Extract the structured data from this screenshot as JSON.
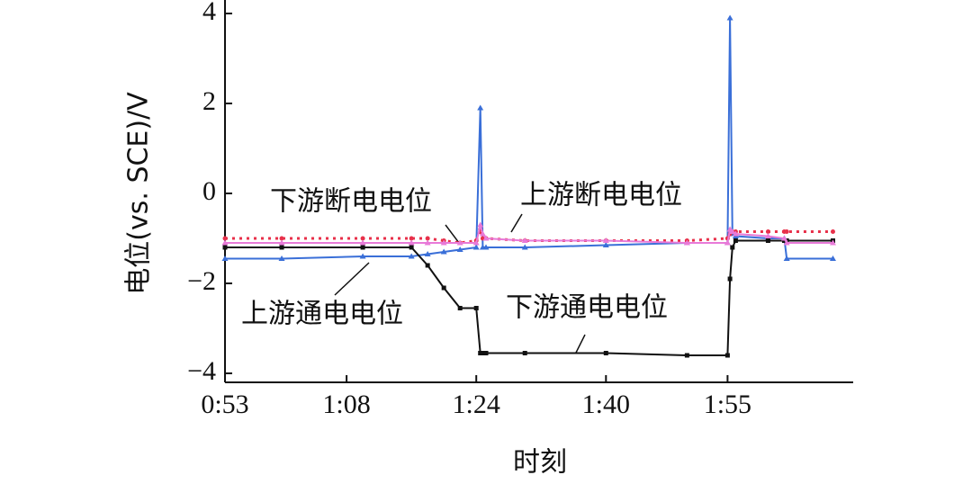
{
  "chart_data": {
    "type": "line",
    "y_label": "电位(vs. SCE)/V",
    "x_label": "时刻",
    "x": [
      53,
      60,
      70,
      76,
      78,
      80,
      82,
      84,
      84.5,
      84.8,
      85.2,
      90,
      100,
      110,
      115,
      115.3,
      115.6,
      116,
      120,
      122,
      122.3,
      128
    ],
    "series": [
      {
        "name": "上游通电电位",
        "color": "#3a6fd8",
        "marker": "triangle",
        "values": [
          -1.45,
          -1.45,
          -1.4,
          -1.4,
          -1.35,
          -1.3,
          -1.25,
          -1.2,
          1.9,
          -1.2,
          -1.2,
          -1.2,
          -1.15,
          -1.1,
          -1.1,
          3.9,
          -0.9,
          -0.95,
          -1.0,
          -1.0,
          -1.45,
          -1.45
        ]
      },
      {
        "name": "下游通电电位",
        "color": "#111111",
        "marker": "square",
        "values": [
          -1.2,
          -1.2,
          -1.2,
          -1.2,
          -1.6,
          -2.1,
          -2.55,
          -2.55,
          -3.55,
          -3.55,
          -3.55,
          -3.55,
          -3.55,
          -3.6,
          -3.6,
          -1.9,
          -1.2,
          -1.05,
          -1.05,
          -1.05,
          -1.05,
          -1.05
        ]
      },
      {
        "name": "下游断电电位",
        "color": "#e8304a",
        "marker": "circle",
        "values": [
          -1.0,
          -1.0,
          -1.0,
          -1.0,
          -1.0,
          -1.05,
          -1.1,
          -1.05,
          -0.8,
          -1.0,
          -1.0,
          -1.05,
          -1.05,
          -1.05,
          -1.0,
          -0.9,
          -0.85,
          -0.85,
          -0.85,
          -0.85,
          -0.85,
          -0.85
        ]
      },
      {
        "name": "上游断电电位",
        "color": "#e87ad8",
        "marker": "triangle",
        "values": [
          -1.1,
          -1.1,
          -1.1,
          -1.1,
          -1.1,
          -1.1,
          -1.1,
          -1.1,
          -0.7,
          -0.9,
          -1.0,
          -1.05,
          -1.05,
          -1.1,
          -1.1,
          -0.8,
          -0.85,
          -0.9,
          -0.95,
          -1.0,
          -1.1,
          -1.1
        ]
      }
    ],
    "xlim": [
      53,
      130.5
    ],
    "xticks": [
      {
        "value": 53,
        "label": "0:53"
      },
      {
        "value": 68,
        "label": "1:08"
      },
      {
        "value": 84,
        "label": "1:24"
      },
      {
        "value": 100,
        "label": "1:40"
      },
      {
        "value": 115,
        "label": "1:55"
      }
    ],
    "ylim": [
      -4.2,
      4.3
    ],
    "yticks": [
      {
        "value": -4,
        "label": "−4"
      },
      {
        "value": -2,
        "label": "−2"
      },
      0,
      2,
      4
    ]
  }
}
